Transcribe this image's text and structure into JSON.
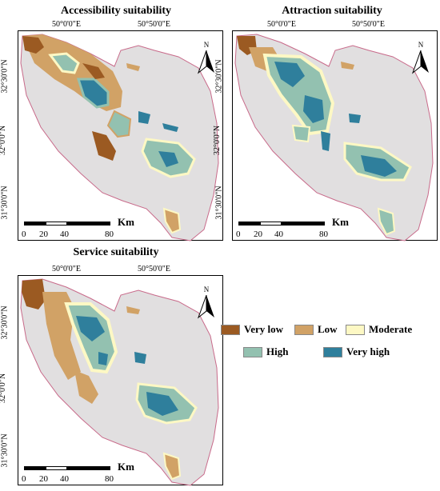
{
  "panels": [
    {
      "title": "Accessibility suitability",
      "lon_labels": [
        "50°0'0\"E",
        "50°50'0\"E"
      ],
      "lat_labels": [
        "32°30'0\"N",
        "32°0'0\"N",
        "31°30'0\"N"
      ]
    },
    {
      "title": "Attraction suitability",
      "lon_labels": [
        "50°0'0\"E",
        "50°50'0\"E"
      ],
      "lat_labels": [
        "32°30'0\"N",
        "32°0'0\"N",
        "31°30'0\"N"
      ]
    },
    {
      "title": "Service suitability",
      "lon_labels": [
        "50°0'0\"E",
        "50°50'0\"E"
      ],
      "lat_labels": [
        "32°30'0\"N",
        "32°0'0\"N",
        "31°30'0\"N"
      ]
    }
  ],
  "scale": {
    "ticks": [
      "0",
      "20",
      "40",
      "80"
    ],
    "unit": "Km"
  },
  "north_label": "N",
  "legend": [
    {
      "label": "Very low",
      "color": "#9b5a22"
    },
    {
      "label": "Low",
      "color": "#d1a266"
    },
    {
      "label": "Moderate",
      "color": "#fdf8c4"
    },
    {
      "label": "High",
      "color": "#93c1b0"
    },
    {
      "label": "Very high",
      "color": "#2f7f9c"
    }
  ],
  "colors": {
    "background_province": "#e1dfe0",
    "boundary": "#c86a8a"
  }
}
